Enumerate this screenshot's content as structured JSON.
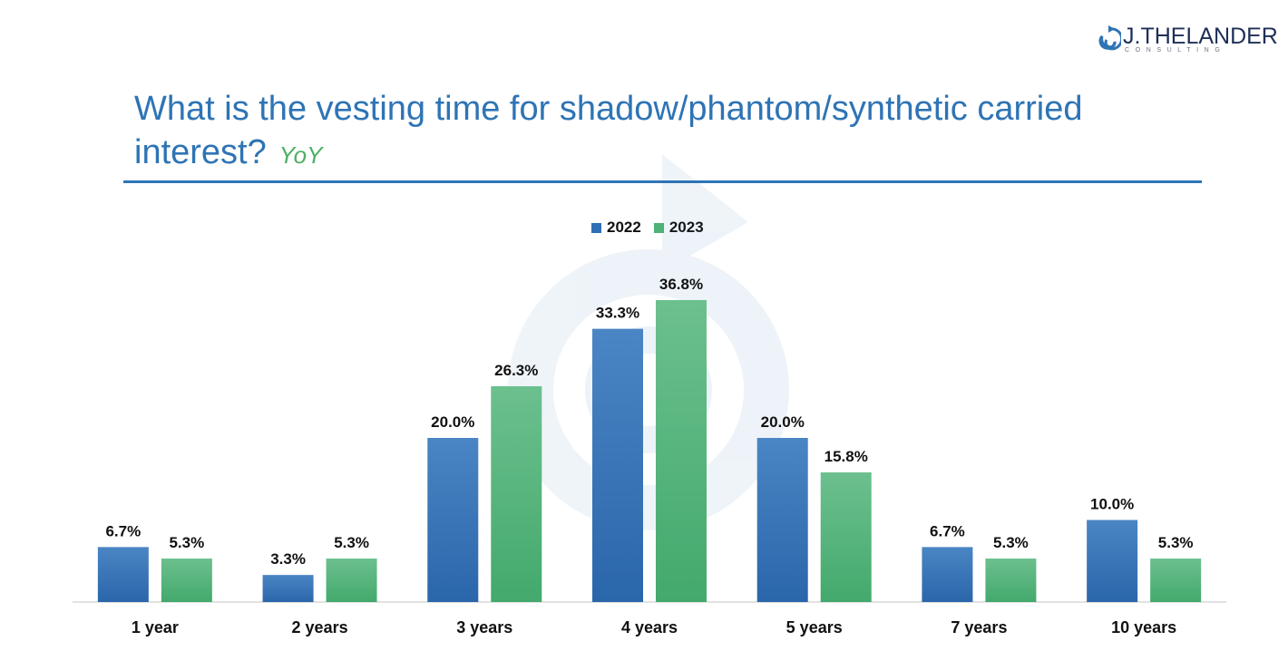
{
  "logo": {
    "name": "J.THELANDER",
    "sub": "CONSULTING"
  },
  "header": {
    "title": "What is the vesting time for shadow/phantom/synthetic carried interest?",
    "badge": "YoY"
  },
  "colors": {
    "series_2022": "#2f6fb5",
    "series_2023": "#4eb378",
    "title": "#2e74b5"
  },
  "chart_data": {
    "type": "bar",
    "categories": [
      "1 year",
      "2 years",
      "3 years",
      "4 years",
      "5 years",
      "7 years",
      "10 years"
    ],
    "series": [
      {
        "name": "2022",
        "values": [
          6.7,
          3.3,
          20.0,
          33.3,
          20.0,
          6.7,
          10.0
        ],
        "labels": [
          "6.7%",
          "3.3%",
          "20.0%",
          "33.3%",
          "20.0%",
          "6.7%",
          "10.0%"
        ]
      },
      {
        "name": "2023",
        "values": [
          5.3,
          5.3,
          26.3,
          36.8,
          15.8,
          5.3,
          5.3
        ],
        "labels": [
          "5.3%",
          "5.3%",
          "26.3%",
          "36.8%",
          "15.8%",
          "5.3%",
          "5.3%"
        ]
      }
    ],
    "ylim": [
      0,
      40
    ],
    "legend": "top-center",
    "grid": false
  }
}
